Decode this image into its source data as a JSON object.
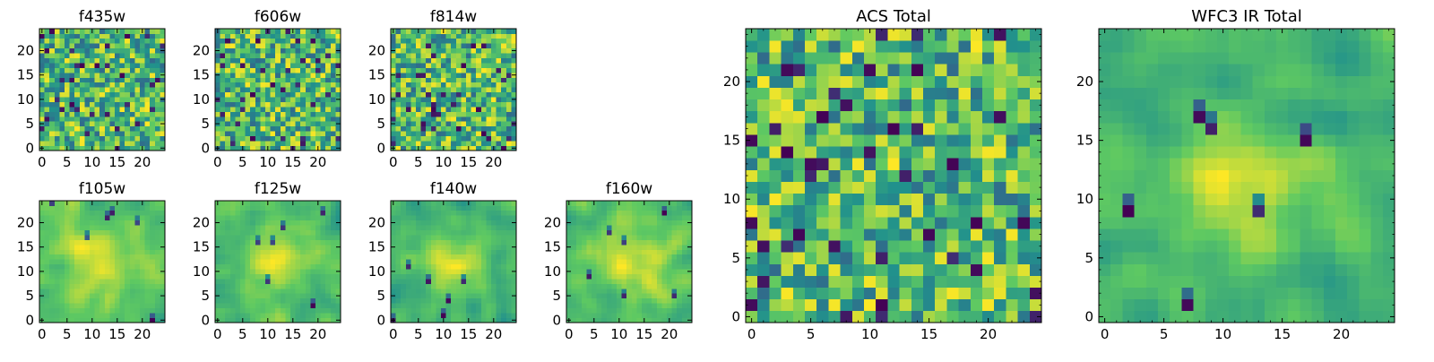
{
  "colormap": {
    "name": "viridis",
    "stops": [
      "#440154",
      "#3b528b",
      "#21918c",
      "#5ec962",
      "#fde725"
    ]
  },
  "chart_data": [
    {
      "type": "heatmap",
      "title": "f435w",
      "grid_size": 25,
      "xlim": [
        0,
        24
      ],
      "ylim": [
        0,
        24
      ],
      "xticks": [
        "0",
        "5",
        "10",
        "15",
        "20"
      ],
      "yticks": [
        "0",
        "5",
        "10",
        "15",
        "20"
      ],
      "pattern": "noise",
      "seed": 11,
      "minor_ticks": false
    },
    {
      "type": "heatmap",
      "title": "f606w",
      "grid_size": 25,
      "xlim": [
        0,
        24
      ],
      "ylim": [
        0,
        24
      ],
      "xticks": [
        "0",
        "5",
        "10",
        "15",
        "20"
      ],
      "yticks": [
        "0",
        "5",
        "10",
        "15",
        "20"
      ],
      "pattern": "noise",
      "seed": 23,
      "minor_ticks": false
    },
    {
      "type": "heatmap",
      "title": "f814w",
      "grid_size": 25,
      "xlim": [
        0,
        24
      ],
      "ylim": [
        0,
        24
      ],
      "xticks": [
        "0",
        "5",
        "10",
        "15",
        "20"
      ],
      "yticks": [
        "0",
        "5",
        "10",
        "15",
        "20"
      ],
      "pattern": "noise",
      "seed": 37,
      "minor_ticks": false
    },
    {
      "type": "heatmap",
      "title": "f105w",
      "grid_size": 25,
      "xlim": [
        0,
        24
      ],
      "ylim": [
        0,
        24
      ],
      "xticks": [
        "0",
        "5",
        "10",
        "15",
        "20"
      ],
      "yticks": [
        "0",
        "5",
        "10",
        "15",
        "20"
      ],
      "pattern": "smooth",
      "seed": 41,
      "minor_ticks": false
    },
    {
      "type": "heatmap",
      "title": "f125w",
      "grid_size": 25,
      "xlim": [
        0,
        24
      ],
      "ylim": [
        0,
        24
      ],
      "xticks": [
        "0",
        "5",
        "10",
        "15",
        "20"
      ],
      "yticks": [
        "0",
        "5",
        "10",
        "15",
        "20"
      ],
      "pattern": "smooth",
      "seed": 53,
      "minor_ticks": false
    },
    {
      "type": "heatmap",
      "title": "f140w",
      "grid_size": 25,
      "xlim": [
        0,
        24
      ],
      "ylim": [
        0,
        24
      ],
      "xticks": [
        "0",
        "5",
        "10",
        "15",
        "20"
      ],
      "yticks": [
        "0",
        "5",
        "10",
        "15",
        "20"
      ],
      "pattern": "smooth",
      "seed": 67,
      "minor_ticks": false
    },
    {
      "type": "heatmap",
      "title": "f160w",
      "grid_size": 25,
      "xlim": [
        0,
        24
      ],
      "ylim": [
        0,
        24
      ],
      "xticks": [
        "0",
        "5",
        "10",
        "15",
        "20"
      ],
      "yticks": [
        "0",
        "5",
        "10",
        "15",
        "20"
      ],
      "pattern": "smooth",
      "seed": 79,
      "minor_ticks": false
    },
    {
      "type": "heatmap",
      "title": "ACS Total",
      "grid_size": 25,
      "xlim": [
        0,
        24
      ],
      "ylim": [
        0,
        24
      ],
      "xticks": [
        "0",
        "5",
        "10",
        "15",
        "20"
      ],
      "yticks": [
        "0",
        "5",
        "10",
        "15",
        "20"
      ],
      "pattern": "noise",
      "seed": 83,
      "minor_ticks": true
    },
    {
      "type": "heatmap",
      "title": "WFC3 IR Total",
      "grid_size": 25,
      "xlim": [
        0,
        24
      ],
      "ylim": [
        0,
        24
      ],
      "xticks": [
        "0",
        "5",
        "10",
        "15",
        "20"
      ],
      "yticks": [
        "0",
        "5",
        "10",
        "15",
        "20"
      ],
      "pattern": "smooth",
      "seed": 97,
      "minor_ticks": true
    }
  ]
}
